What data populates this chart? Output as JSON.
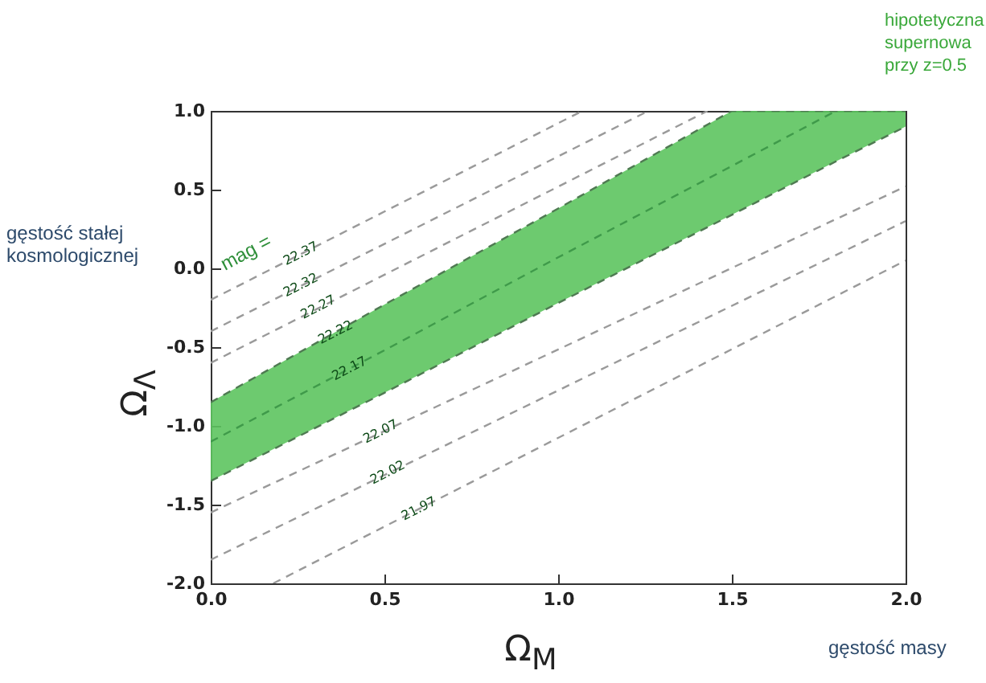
{
  "chart_data": {
    "type": "line",
    "xlabel": "Ω$_{M}$",
    "ylabel": "Ω$_{Λ}$",
    "xlim": [
      0,
      2
    ],
    "ylim": [
      -2,
      1
    ],
    "xticks": [
      {
        "value": 0,
        "label": "0.0"
      },
      {
        "value": 0.5,
        "label": "0.5"
      },
      {
        "value": 1,
        "label": "1.0"
      },
      {
        "value": 1.5,
        "label": "1.5"
      },
      {
        "value": 2,
        "label": "2.0"
      }
    ],
    "yticks": [
      {
        "value": -2,
        "label": "-2.0"
      },
      {
        "value": -1.5,
        "label": "-1.5"
      },
      {
        "value": -1,
        "label": "-1.0"
      },
      {
        "value": -0.5,
        "label": "-0.5"
      },
      {
        "value": 0,
        "label": "0.0"
      },
      {
        "value": 0.5,
        "label": "0.5"
      },
      {
        "value": 1,
        "label": "1.0"
      }
    ],
    "grid": false,
    "line_style": "dashed",
    "series": [
      {
        "color": "#9a9a9a",
        "x": [
          0,
          1.07
        ],
        "values": [
          -0.2,
          1.0
        ]
      },
      {
        "color": "#9a9a9a",
        "x": [
          0,
          1.26
        ],
        "values": [
          -0.4,
          1.0
        ]
      },
      {
        "color": "#9a9a9a",
        "x": [
          0,
          1.43
        ],
        "values": [
          -0.6,
          1.0
        ]
      },
      {
        "color": "#3f9a4a",
        "x": [
          0,
          0.5,
          1,
          1.5,
          1.8,
          2
        ],
        "values": [
          -1.1,
          -0.52,
          0.07,
          0.65,
          1.0,
          null
        ],
        "lower": [
          -1.35,
          -0.79,
          -0.22,
          0.34,
          0.68,
          0.9
        ],
        "upper": [
          -0.85,
          -0.23,
          0.38,
          1.0,
          1.0,
          1.0
        ]
      },
      {
        "color": "#4f7a52",
        "x": [
          0,
          0.5,
          1,
          1.5,
          1.8,
          2
        ],
        "values": [
          -1.35,
          -0.79,
          -0.22,
          0.34,
          0.68,
          0.9
        ]
      },
      {
        "color": "#4f7a52",
        "x": [
          0,
          0.5,
          1,
          1.5,
          1.8,
          2
        ],
        "values": [
          -0.85,
          -0.23,
          0.38,
          1.0,
          1.0,
          1.0
        ]
      },
      {
        "color": "#9a9a9a",
        "x": [
          0,
          2
        ],
        "values": [
          -1.55,
          0.52
        ]
      },
      {
        "color": "#9a9a9a",
        "x": [
          0,
          2
        ],
        "values": [
          -1.85,
          0.3
        ]
      },
      {
        "color": "#9a9a9a",
        "x": [
          0.18,
          2
        ],
        "values": [
          -2.0,
          0.05
        ]
      }
    ],
    "annotations": [
      "hipotetyczna supernowa przy z=0.5",
      "gęstość stałej kosmologicznej",
      "gęstość masy",
      "mag =",
      {
        "text": "22.37",
        "x": 0.26,
        "y": 0.09
      },
      {
        "text": "22.32",
        "x": 0.26,
        "y": -0.11
      },
      {
        "text": "22.27",
        "x": 0.31,
        "y": -0.25
      },
      {
        "text": "22.22",
        "x": 0.36,
        "y": -0.41
      },
      {
        "text": "22.17",
        "x": 0.4,
        "y": -0.64
      },
      {
        "text": "22.07",
        "x": 0.49,
        "y": -1.04
      },
      {
        "text": "22.02",
        "x": 0.51,
        "y": -1.3
      },
      {
        "text": "21.97",
        "x": 0.6,
        "y": -1.53
      }
    ]
  }
}
